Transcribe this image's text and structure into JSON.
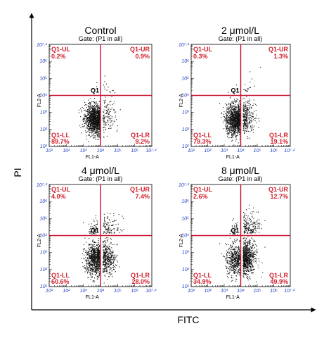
{
  "outer": {
    "xlabel": "FITC",
    "ylabel": "PI"
  },
  "colors": {
    "quadrant_line": "#c8102e",
    "quadrant_text": "#d0202c",
    "tick_text": "#1f3fbf",
    "dots": "#111111"
  },
  "chart_data": [
    {
      "type": "scatter",
      "title": "Control",
      "gate": "Gate: (P1 in all)",
      "xlabel": "FL1-A",
      "ylabel": "FL2-A",
      "center_label": "Q1",
      "divider": {
        "x": 10000,
        "y": 10000
      },
      "xlim": [
        10,
        10000000
      ],
      "ylim": [
        10,
        10000000
      ],
      "x_ticks": [
        "10¹",
        "10²",
        "10³",
        "10⁴",
        "10⁵",
        "10⁶",
        "10⁷·²"
      ],
      "y_ticks": [
        "10¹",
        "10²",
        "10³",
        "10⁴",
        "10⁵",
        "10⁶",
        "10⁷·²"
      ],
      "quadrants": {
        "UL": {
          "label": "Q1-UL",
          "value": "0.2%"
        },
        "UR": {
          "label": "Q1-UR",
          "value": "0.9%"
        },
        "LL": {
          "label": "Q1-LL",
          "value": "89.7%"
        },
        "LR": {
          "label": "Q1-LR",
          "value": "9.2%"
        }
      },
      "quadrant_fractions": {
        "UL": 0.002,
        "UR": 0.009,
        "LL": 0.897,
        "LR": 0.092
      }
    },
    {
      "type": "scatter",
      "title": "2 μmol/L",
      "gate": "Gate: (P1 in all)",
      "xlabel": "FL1-A",
      "ylabel": "FL2-A",
      "center_label": "Q1",
      "divider": {
        "x": 10000,
        "y": 10000
      },
      "xlim": [
        10,
        10000000
      ],
      "ylim": [
        10,
        10000000
      ],
      "x_ticks": [
        "10¹",
        "10²",
        "10³",
        "10⁴",
        "10⁵",
        "10⁶",
        "10⁷·²"
      ],
      "y_ticks": [
        "10¹",
        "10²",
        "10³",
        "10⁴",
        "10⁵",
        "10⁶",
        "10⁷·²"
      ],
      "quadrants": {
        "UL": {
          "label": "Q1-UL",
          "value": "0.3%"
        },
        "UR": {
          "label": "Q1-UR",
          "value": "1.3%"
        },
        "LL": {
          "label": "Q1-LL",
          "value": "79.3%"
        },
        "LR": {
          "label": "Q1-LR",
          "value": "19.1%"
        }
      },
      "quadrant_fractions": {
        "UL": 0.003,
        "UR": 0.013,
        "LL": 0.793,
        "LR": 0.191
      }
    },
    {
      "type": "scatter",
      "title": "4 μmol/L",
      "gate": "Gate: (P1 in all)",
      "xlabel": "FL1-A",
      "ylabel": "FL2-A",
      "center_label": "Q1",
      "divider": {
        "x": 10000,
        "y": 10000
      },
      "xlim": [
        10,
        10000000
      ],
      "ylim": [
        10,
        10000000
      ],
      "x_ticks": [
        "10¹",
        "10²",
        "10³",
        "10⁴",
        "10⁵",
        "10⁶",
        "10⁷·²"
      ],
      "y_ticks": [
        "10¹",
        "10²",
        "10³",
        "10⁴",
        "10⁵",
        "10⁶",
        "10⁷·²"
      ],
      "quadrants": {
        "UL": {
          "label": "Q1-UL",
          "value": "4.0%"
        },
        "UR": {
          "label": "Q1-UR",
          "value": "7.4%"
        },
        "LL": {
          "label": "Q1-LL",
          "value": "60.6%"
        },
        "LR": {
          "label": "Q1-LR",
          "value": "28.0%"
        }
      },
      "quadrant_fractions": {
        "UL": 0.04,
        "UR": 0.074,
        "LL": 0.606,
        "LR": 0.28
      }
    },
    {
      "type": "scatter",
      "title": "8 μmol/L",
      "gate": "Gate: (P1 in all)",
      "xlabel": "FL1-A",
      "ylabel": "FL2-A",
      "center_label": "Q1",
      "divider": {
        "x": 10000,
        "y": 10000
      },
      "xlim": [
        10,
        10000000
      ],
      "ylim": [
        10,
        10000000
      ],
      "x_ticks": [
        "10¹",
        "10²",
        "10³",
        "10⁴",
        "10⁵",
        "10⁶",
        "10⁷·²"
      ],
      "y_ticks": [
        "10¹",
        "10²",
        "10³",
        "10⁴",
        "10⁵",
        "10⁶",
        "10⁷·²"
      ],
      "quadrants": {
        "UL": {
          "label": "Q1-UL",
          "value": "2.6%"
        },
        "UR": {
          "label": "Q1-UR",
          "value": "12.7%"
        },
        "LL": {
          "label": "Q1-LL",
          "value": "34.9%"
        },
        "LR": {
          "label": "Q1-LR",
          "value": "49.9%"
        }
      },
      "quadrant_fractions": {
        "UL": 0.026,
        "UR": 0.127,
        "LL": 0.349,
        "LR": 0.499
      }
    }
  ]
}
